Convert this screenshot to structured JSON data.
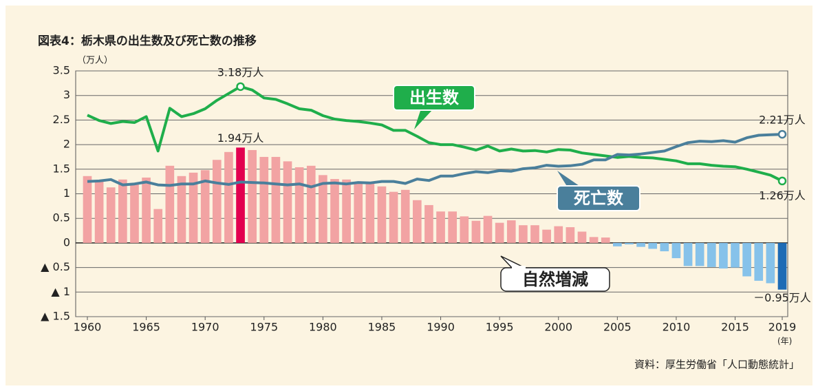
{
  "chart_data": {
    "type": "bar_line",
    "title": "図表4：栃木県の出生数及び死亡数の推移",
    "y_unit": "（万人）",
    "x_unit": "(年)",
    "source": "資料：厚生労働省「人口動態統計」",
    "x": [
      1960,
      1961,
      1962,
      1963,
      1964,
      1965,
      1966,
      1967,
      1968,
      1969,
      1970,
      1971,
      1972,
      1973,
      1974,
      1975,
      1976,
      1977,
      1978,
      1979,
      1980,
      1981,
      1982,
      1983,
      1984,
      1985,
      1986,
      1987,
      1988,
      1989,
      1990,
      1991,
      1992,
      1993,
      1994,
      1995,
      1996,
      1997,
      1998,
      1999,
      2000,
      2001,
      2002,
      2003,
      2004,
      2005,
      2006,
      2007,
      2008,
      2009,
      2010,
      2011,
      2012,
      2013,
      2014,
      2015,
      2016,
      2017,
      2018,
      2019
    ],
    "xlim": [
      1960,
      2019
    ],
    "xticks": [
      1960,
      1965,
      1970,
      1975,
      1980,
      1985,
      1990,
      1995,
      2000,
      2005,
      2010,
      2015,
      2019
    ],
    "ylim": [
      -1.5,
      3.5
    ],
    "yticks": [
      {
        "value": -1.5,
        "label": "▲ 1.5"
      },
      {
        "value": -1,
        "label": "▲ 1"
      },
      {
        "value": -0.5,
        "label": "▲ 0.5"
      },
      0,
      0.5,
      1,
      1.5,
      2,
      2.5,
      3,
      3.5
    ],
    "grid": true,
    "series": [
      {
        "name": "自然増減",
        "type": "bar",
        "values": [
          1.36,
          1.28,
          1.13,
          1.29,
          1.22,
          1.33,
          0.69,
          1.57,
          1.36,
          1.43,
          1.48,
          1.69,
          1.85,
          1.94,
          1.89,
          1.75,
          1.75,
          1.66,
          1.54,
          1.57,
          1.38,
          1.3,
          1.29,
          1.24,
          1.22,
          1.15,
          1.04,
          1.08,
          0.87,
          0.77,
          0.64,
          0.64,
          0.54,
          0.45,
          0.55,
          0.41,
          0.46,
          0.36,
          0.36,
          0.27,
          0.34,
          0.32,
          0.23,
          0.12,
          0.11,
          -0.07,
          -0.03,
          -0.08,
          -0.12,
          -0.17,
          -0.31,
          -0.47,
          -0.47,
          -0.49,
          -0.52,
          -0.5,
          -0.68,
          -0.77,
          -0.82,
          -0.95
        ],
        "colors": [
          "#f2a3a3",
          "#f2a3a3",
          "#f2a3a3",
          "#f2a3a3",
          "#f2a3a3",
          "#f2a3a3",
          "#f2a3a3",
          "#f2a3a3",
          "#f2a3a3",
          "#f2a3a3",
          "#f2a3a3",
          "#f2a3a3",
          "#f2a3a3",
          "#e2004f",
          "#f2a3a3",
          "#f2a3a3",
          "#f2a3a3",
          "#f2a3a3",
          "#f2a3a3",
          "#f2a3a3",
          "#f2a3a3",
          "#f2a3a3",
          "#f2a3a3",
          "#f2a3a3",
          "#f2a3a3",
          "#f2a3a3",
          "#f2a3a3",
          "#f2a3a3",
          "#f2a3a3",
          "#f2a3a3",
          "#f2a3a3",
          "#f2a3a3",
          "#f2a3a3",
          "#f2a3a3",
          "#f2a3a3",
          "#f2a3a3",
          "#f2a3a3",
          "#f2a3a3",
          "#f2a3a3",
          "#f2a3a3",
          "#f2a3a3",
          "#f2a3a3",
          "#f2a3a3",
          "#f2a3a3",
          "#f2a3a3",
          "#86c2ea",
          "#86c2ea",
          "#86c2ea",
          "#86c2ea",
          "#86c2ea",
          "#86c2ea",
          "#86c2ea",
          "#86c2ea",
          "#86c2ea",
          "#86c2ea",
          "#86c2ea",
          "#86c2ea",
          "#86c2ea",
          "#86c2ea",
          "#1d6bb5"
        ],
        "value_labels": [
          null,
          null,
          null,
          null,
          null,
          null,
          null,
          null,
          null,
          null,
          null,
          null,
          null,
          "1.94万人",
          null,
          null,
          null,
          null,
          null,
          null,
          null,
          null,
          null,
          null,
          null,
          null,
          null,
          null,
          null,
          null,
          null,
          null,
          null,
          null,
          null,
          null,
          null,
          null,
          null,
          null,
          null,
          null,
          null,
          null,
          null,
          null,
          null,
          null,
          null,
          null,
          null,
          null,
          null,
          null,
          null,
          null,
          null,
          null,
          null,
          "－0.95万人"
        ]
      },
      {
        "name": "出生数",
        "type": "line",
        "color": "#1fae4b",
        "values": [
          2.6,
          2.49,
          2.43,
          2.47,
          2.45,
          2.57,
          1.87,
          2.74,
          2.57,
          2.63,
          2.73,
          2.9,
          3.04,
          3.18,
          3.11,
          2.95,
          2.92,
          2.83,
          2.73,
          2.7,
          2.59,
          2.52,
          2.49,
          2.47,
          2.44,
          2.4,
          2.29,
          2.29,
          2.17,
          2.04,
          2.0,
          2.0,
          1.95,
          1.89,
          1.97,
          1.87,
          1.91,
          1.87,
          1.88,
          1.85,
          1.9,
          1.89,
          1.83,
          1.8,
          1.77,
          1.74,
          1.76,
          1.74,
          1.73,
          1.7,
          1.67,
          1.61,
          1.61,
          1.58,
          1.56,
          1.55,
          1.5,
          1.44,
          1.38,
          1.26
        ],
        "value_labels": [
          null,
          null,
          null,
          null,
          null,
          null,
          null,
          null,
          null,
          null,
          null,
          null,
          null,
          "3.18万人",
          null,
          null,
          null,
          null,
          null,
          null,
          null,
          null,
          null,
          null,
          null,
          null,
          null,
          null,
          null,
          null,
          null,
          null,
          null,
          null,
          null,
          null,
          null,
          null,
          null,
          null,
          null,
          null,
          null,
          null,
          null,
          null,
          null,
          null,
          null,
          null,
          null,
          null,
          null,
          null,
          null,
          null,
          null,
          null,
          null,
          "1.26万人"
        ]
      },
      {
        "name": "死亡数",
        "type": "line",
        "color": "#4a7f9b",
        "values": [
          1.25,
          1.26,
          1.29,
          1.18,
          1.2,
          1.24,
          1.18,
          1.17,
          1.2,
          1.2,
          1.26,
          1.22,
          1.19,
          1.24,
          1.23,
          1.22,
          1.2,
          1.18,
          1.2,
          1.14,
          1.21,
          1.22,
          1.2,
          1.23,
          1.22,
          1.25,
          1.25,
          1.21,
          1.3,
          1.27,
          1.36,
          1.36,
          1.41,
          1.45,
          1.43,
          1.47,
          1.46,
          1.51,
          1.53,
          1.58,
          1.56,
          1.57,
          1.6,
          1.69,
          1.69,
          1.8,
          1.79,
          1.81,
          1.84,
          1.87,
          1.96,
          2.04,
          2.07,
          2.06,
          2.08,
          2.05,
          2.14,
          2.19,
          2.2,
          2.21
        ],
        "value_labels": [
          null,
          null,
          null,
          null,
          null,
          null,
          null,
          null,
          null,
          null,
          null,
          null,
          null,
          null,
          null,
          null,
          null,
          null,
          null,
          null,
          null,
          null,
          null,
          null,
          null,
          null,
          null,
          null,
          null,
          null,
          null,
          null,
          null,
          null,
          null,
          null,
          null,
          null,
          null,
          null,
          null,
          null,
          null,
          null,
          null,
          null,
          null,
          null,
          null,
          null,
          null,
          null,
          null,
          null,
          null,
          null,
          null,
          null,
          null,
          "2.21万人"
        ]
      }
    ]
  }
}
